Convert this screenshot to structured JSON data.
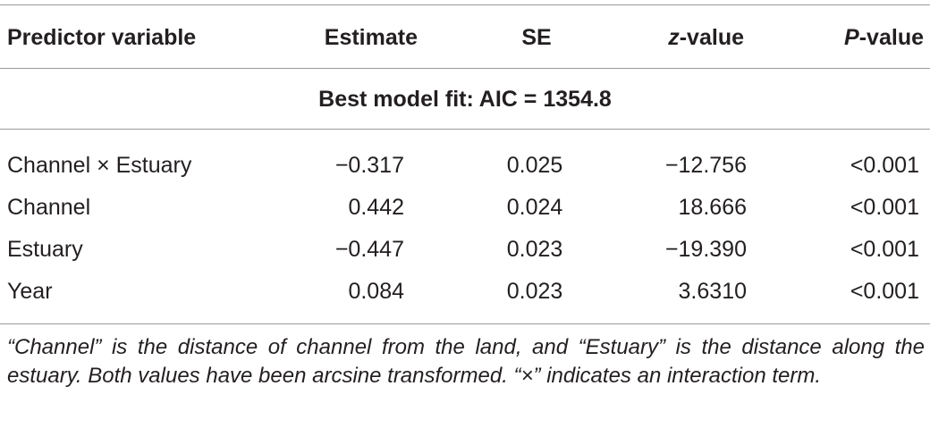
{
  "table": {
    "header": [
      [
        {
          "text": "Predictor variable"
        }
      ],
      [
        {
          "text": "Estimate"
        }
      ],
      [
        {
          "text": "SE"
        }
      ],
      [
        {
          "text": "z",
          "italic": true
        },
        {
          "text": "-value"
        }
      ],
      [
        {
          "text": "P",
          "italic": true
        },
        {
          "text": "-value"
        }
      ]
    ],
    "subtitle": "Best model fit: AIC = 1354.8",
    "rows": [
      [
        "Channel × Estuary",
        "−0.317",
        "0.025",
        "−12.756",
        "<0.001"
      ],
      [
        "Channel",
        "0.442",
        "0.024",
        "18.666",
        "<0.001"
      ],
      [
        "Estuary",
        "−0.447",
        "0.023",
        "−19.390",
        "<0.001"
      ],
      [
        "Year",
        "0.084",
        "0.023",
        "3.6310",
        "<0.001"
      ]
    ],
    "footnote": "“Channel” is the distance of channel from the land, and “Estuary” is the distance along the estuary. Both values have been arcsine transformed. “×” indicates an interaction term."
  }
}
